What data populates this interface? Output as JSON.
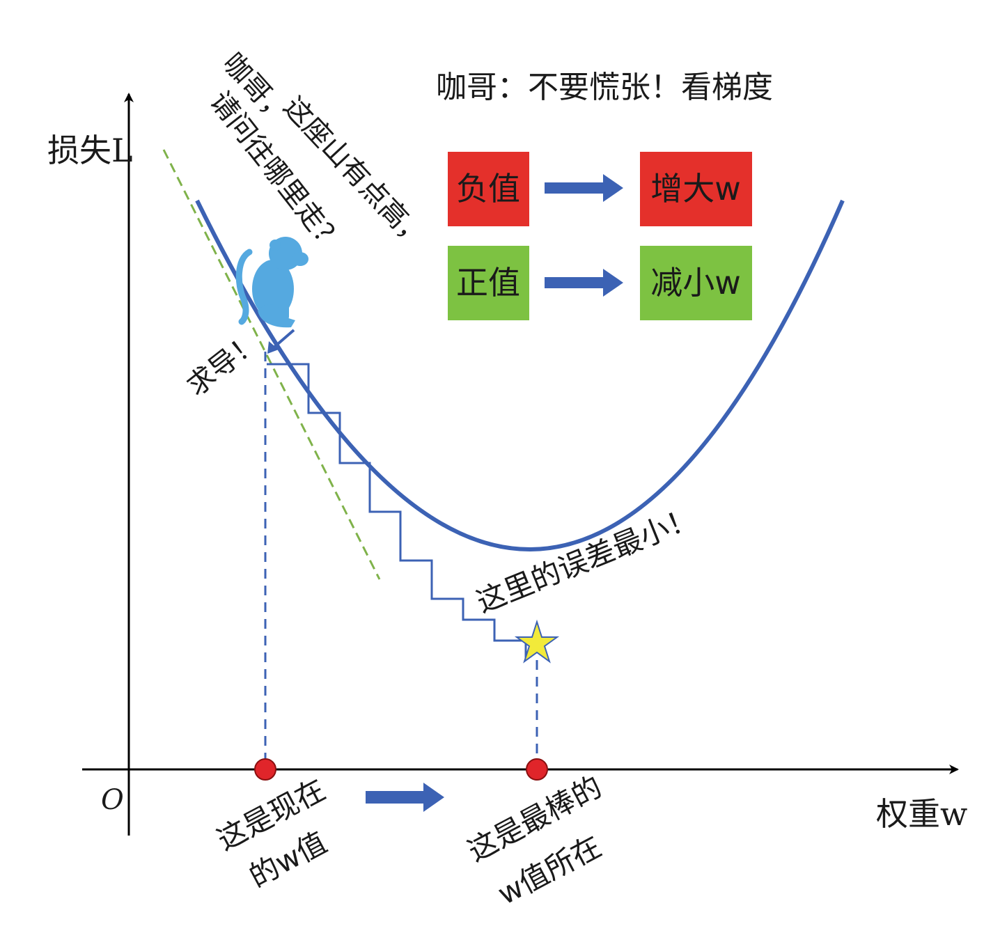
{
  "axes": {
    "y_label": "损失L",
    "x_label": "权重w",
    "origin": "O"
  },
  "annotations": {
    "monkey_line1": "咖哥，",
    "monkey_line2": "请问往哪里走？",
    "monkey_line3": "这座山有点高，",
    "derivative": "求导！",
    "advice": "咖哥：不要慌张！看梯度",
    "min_error": "这里的误差最小！",
    "current_w_line1": "这是现在",
    "current_w_line2": "的w值",
    "best_w_line1": "这是最棒的",
    "best_w_line2": "w值所在"
  },
  "rules": [
    {
      "from": "负值",
      "to": "增大w",
      "color": "#e4302b"
    },
    {
      "from": "正值",
      "to": "减小w",
      "color": "#7dc242"
    }
  ],
  "colors": {
    "curve": "#3c62b4",
    "arrow": "#3c62b4",
    "monkey": "#55a9e0",
    "tangent": "#7fb24a",
    "point": "#e0252a",
    "star": "#f2ea3a"
  }
}
